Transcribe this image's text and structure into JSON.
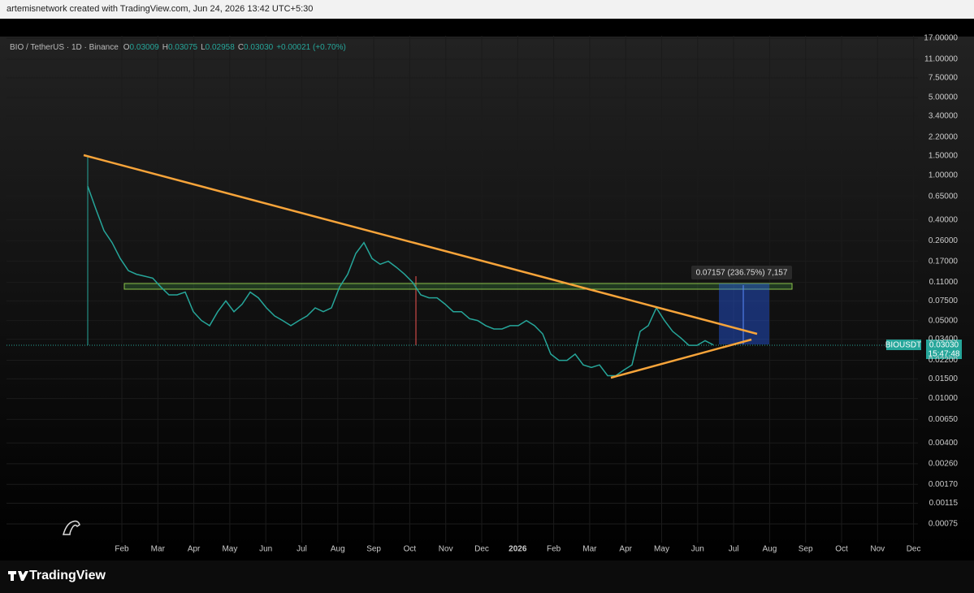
{
  "header": {
    "text": "artemisnetwork created with TradingView.com, Jun 24, 2026 13:42 UTC+5:30"
  },
  "legend": {
    "symbol": "BIO / TetherUS · 1D · Binance",
    "o": "O",
    "o_value": "0.03009",
    "h": "H",
    "h_value": "0.03075",
    "l": "L",
    "l_value": "0.02958",
    "c": "C",
    "c_value": "0.03030",
    "change": "+0.00021 (+0.70%)"
  },
  "measure_label": "0.07157 (236.75%) 7,157",
  "price_tag": {
    "symbol": "BIOUSDT",
    "price": "0.03030",
    "countdown": "15:47:48"
  },
  "footer": {
    "brand": "TradingView"
  },
  "chart_data": {
    "type": "line",
    "log_scale": true,
    "grid": true,
    "x_labels": [
      "Feb",
      "Mar",
      "Apr",
      "May",
      "Jun",
      "Jul",
      "Aug",
      "Sep",
      "Oct",
      "Nov",
      "Dec",
      "2026",
      "Feb",
      "Mar",
      "Apr",
      "May",
      "Jun",
      "Jul",
      "Aug",
      "Sep",
      "Oct",
      "Nov",
      "Dec"
    ],
    "ylim": [
      0.00051,
      17.9
    ],
    "yticks": [
      {
        "value": 17,
        "label": "17.00000"
      },
      {
        "value": 11,
        "label": "11.00000"
      },
      {
        "value": 7.5,
        "label": "7.50000"
      },
      {
        "value": 5,
        "label": "5.00000"
      },
      {
        "value": 3.4,
        "label": "3.40000"
      },
      {
        "value": 2.2,
        "label": "2.20000"
      },
      {
        "value": 1.5,
        "label": "1.50000"
      },
      {
        "value": 1,
        "label": "1.00000"
      },
      {
        "value": 0.65,
        "label": "0.65000"
      },
      {
        "value": 0.4,
        "label": "0.40000"
      },
      {
        "value": 0.26,
        "label": "0.26000"
      },
      {
        "value": 0.17,
        "label": "0.17000"
      },
      {
        "value": 0.11,
        "label": "0.11000"
      },
      {
        "value": 0.075,
        "label": "0.07500"
      },
      {
        "value": 0.05,
        "label": "0.05000"
      },
      {
        "value": 0.034,
        "label": "0.03400"
      },
      {
        "value": 0.022,
        "label": "0.02200"
      },
      {
        "value": 0.015,
        "label": "0.01500"
      },
      {
        "value": 0.01,
        "label": "0.01000"
      },
      {
        "value": 0.0065,
        "label": "0.00650"
      },
      {
        "value": 0.004,
        "label": "0.00400"
      },
      {
        "value": 0.0026,
        "label": "0.00260"
      },
      {
        "value": 0.0017,
        "label": "0.00170"
      },
      {
        "value": 0.00115,
        "label": "0.00115"
      },
      {
        "value": 0.00075,
        "label": "0.00075"
      }
    ],
    "series": [
      {
        "name": "BIOUSDT",
        "color": "#26a69a",
        "values": [
          0.8,
          0.5,
          0.32,
          0.25,
          0.18,
          0.14,
          0.13,
          0.125,
          0.12,
          0.1,
          0.085,
          0.085,
          0.09,
          0.06,
          0.05,
          0.045,
          0.06,
          0.075,
          0.06,
          0.07,
          0.09,
          0.08,
          0.065,
          0.055,
          0.05,
          0.045,
          0.05,
          0.055,
          0.065,
          0.06,
          0.065,
          0.1,
          0.13,
          0.2,
          0.25,
          0.18,
          0.16,
          0.17,
          0.15,
          0.13,
          0.11,
          0.085,
          0.08,
          0.08,
          0.07,
          0.06,
          0.06,
          0.052,
          0.05,
          0.045,
          0.042,
          0.042,
          0.045,
          0.045,
          0.05,
          0.045,
          0.038,
          0.025,
          0.022,
          0.022,
          0.025,
          0.02,
          0.019,
          0.02,
          0.016,
          0.016,
          0.018,
          0.02,
          0.04,
          0.045,
          0.065,
          0.05,
          0.04,
          0.035,
          0.03,
          0.03,
          0.033,
          0.0303
        ]
      }
    ]
  }
}
